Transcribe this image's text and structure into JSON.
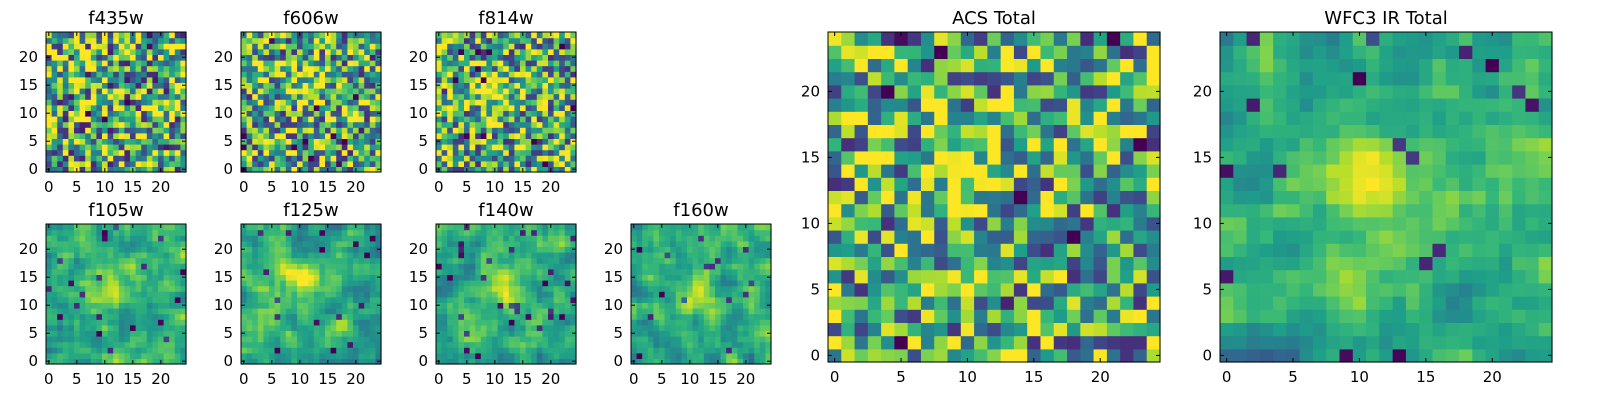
{
  "chart_data": {
    "type": "heatmap",
    "colormap": "viridis",
    "grid": false,
    "panels": [
      {
        "title": "f435w",
        "size": 25,
        "xticks": [
          0,
          5,
          10,
          15,
          20
        ],
        "yticks": [
          0,
          5,
          10,
          15,
          20
        ],
        "blob": null,
        "noise": 0.55,
        "smooth": 0,
        "seed": 11
      },
      {
        "title": "f606w",
        "size": 25,
        "xticks": [
          0,
          5,
          10,
          15,
          20
        ],
        "yticks": [
          0,
          5,
          10,
          15,
          20
        ],
        "blob": [
          11,
          15
        ],
        "noise": 0.5,
        "smooth": 0,
        "seed": 23
      },
      {
        "title": "f814w",
        "size": 25,
        "xticks": [
          0,
          5,
          10,
          15,
          20
        ],
        "yticks": [
          0,
          5,
          10,
          15,
          20
        ],
        "blob": [
          10,
          14
        ],
        "noise": 0.5,
        "smooth": 0,
        "seed": 37
      },
      {
        "title": "f105w",
        "size": 25,
        "xticks": [
          0,
          5,
          10,
          15,
          20
        ],
        "yticks": [
          0,
          5,
          10,
          15,
          20
        ],
        "blob": [
          11,
          14
        ],
        "noise": 0.45,
        "smooth": 1,
        "seed": 41
      },
      {
        "title": "f125w",
        "size": 25,
        "xticks": [
          0,
          5,
          10,
          15,
          20
        ],
        "yticks": [
          0,
          5,
          10,
          15,
          20
        ],
        "blob": [
          10,
          15
        ],
        "noise": 0.45,
        "smooth": 1,
        "seed": 53
      },
      {
        "title": "f140w",
        "size": 25,
        "xticks": [
          0,
          5,
          10,
          15,
          20
        ],
        "yticks": [
          0,
          5,
          10,
          15,
          20
        ],
        "blob": [
          11,
          14
        ],
        "noise": 0.45,
        "smooth": 1,
        "seed": 67
      },
      {
        "title": "f160w",
        "size": 25,
        "xticks": [
          0,
          5,
          10,
          15,
          20
        ],
        "yticks": [
          0,
          5,
          10,
          15,
          20
        ],
        "blob": [
          11,
          12
        ],
        "noise": 0.45,
        "smooth": 1,
        "seed": 79
      },
      {
        "title": "ACS Total",
        "size": 25,
        "xticks": [
          0,
          5,
          10,
          15,
          20
        ],
        "yticks": [
          0,
          5,
          10,
          15,
          20
        ],
        "blob": [
          10,
          14
        ],
        "noise": 0.5,
        "smooth": 0,
        "seed": 83
      },
      {
        "title": "WFC3 IR Total",
        "size": 25,
        "xticks": [
          0,
          5,
          10,
          15,
          20
        ],
        "yticks": [
          0,
          5,
          10,
          15,
          20
        ],
        "blob": [
          11,
          13
        ],
        "noise": 0.4,
        "smooth": 1,
        "seed": 97
      }
    ]
  }
}
